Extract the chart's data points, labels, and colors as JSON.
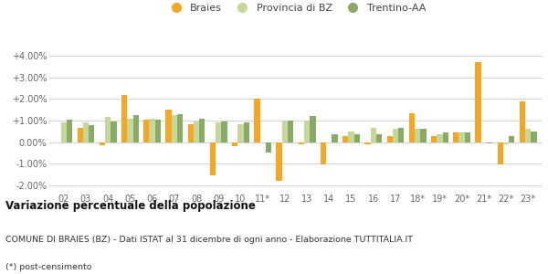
{
  "categories": [
    "02",
    "03",
    "04",
    "05",
    "06",
    "07",
    "08",
    "09",
    "10",
    "11*",
    "12",
    "13",
    "14",
    "15",
    "16",
    "17",
    "18*",
    "19*",
    "20*",
    "21*",
    "22*",
    "23*"
  ],
  "braies": [
    0.0,
    0.65,
    -0.15,
    2.2,
    1.05,
    1.5,
    0.85,
    -1.55,
    -0.2,
    2.0,
    -1.8,
    -0.1,
    -1.05,
    0.3,
    -0.1,
    0.3,
    1.35,
    0.3,
    0.45,
    3.7,
    -1.05,
    1.9
  ],
  "provincia_bz": [
    0.9,
    0.9,
    1.15,
    1.1,
    1.1,
    1.25,
    0.95,
    0.9,
    0.85,
    0.0,
    0.95,
    1.0,
    0.0,
    0.5,
    0.65,
    0.6,
    0.6,
    0.35,
    0.45,
    0.0,
    -0.1,
    0.6
  ],
  "trentino_aa": [
    1.05,
    0.8,
    0.95,
    1.25,
    1.05,
    1.3,
    1.1,
    0.95,
    0.9,
    -0.5,
    1.0,
    1.2,
    0.35,
    0.35,
    0.35,
    0.65,
    0.6,
    0.45,
    0.45,
    -0.05,
    0.3,
    0.5
  ],
  "braies_color": "#f5a623",
  "provincia_bz_color": "#c5d89a",
  "trentino_aa_color": "#8aaa68",
  "bg_color": "#ffffff",
  "grid_color": "#cccccc",
  "ylim_min": -2.3,
  "ylim_max": 4.3,
  "yticks": [
    -2.0,
    -1.0,
    0.0,
    1.0,
    2.0,
    3.0,
    4.0
  ],
  "title": "Variazione percentuale della popolazione",
  "subtitle": "COMUNE DI BRAIES (BZ) - Dati ISTAT al 31 dicembre di ogni anno - Elaborazione TUTTITALIA.IT",
  "footnote": "(*) post-censimento",
  "legend_labels": [
    "Braies",
    "Provincia di BZ",
    "Trentino-AA"
  ],
  "bar_width": 0.26
}
